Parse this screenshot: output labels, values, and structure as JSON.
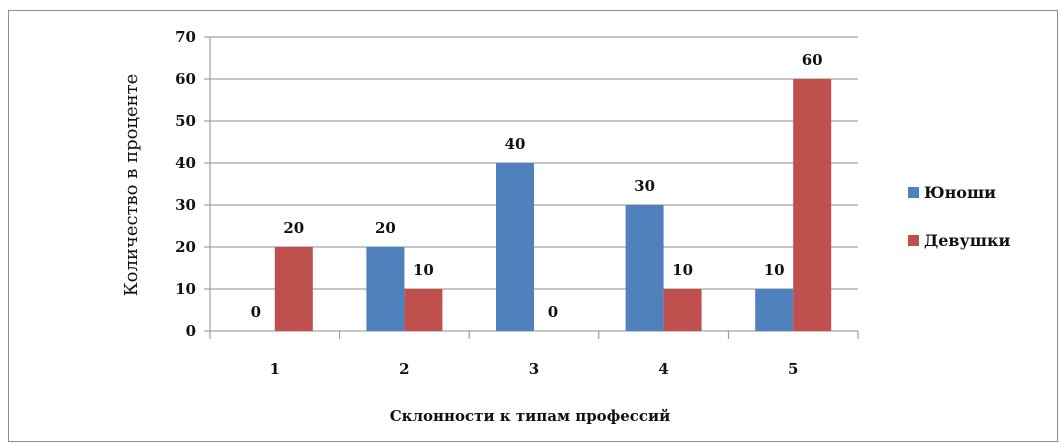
{
  "chart_data": {
    "type": "bar",
    "categories": [
      "1",
      "2",
      "3",
      "4",
      "5"
    ],
    "series": [
      {
        "name": "Юноши",
        "values": [
          0,
          20,
          40,
          30,
          10
        ],
        "color": "#4f81bd"
      },
      {
        "name": "Девушки",
        "values": [
          20,
          10,
          0,
          10,
          60
        ],
        "color": "#c0504d"
      }
    ],
    "title": "",
    "xlabel": "Склонности к типам профессий",
    "ylabel": "Количество в проценте",
    "ylim": [
      0,
      70
    ],
    "yticks": [
      "0",
      "10",
      "20",
      "30",
      "40",
      "50",
      "60",
      "70"
    ],
    "grid": true,
    "legend_position": "right"
  }
}
